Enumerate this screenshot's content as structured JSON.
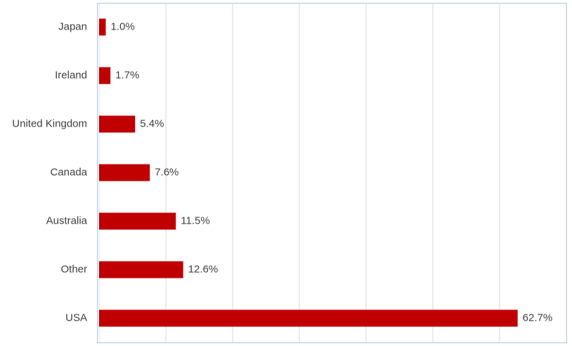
{
  "chart_data": {
    "type": "bar",
    "orientation": "horizontal",
    "categories": [
      "Japan",
      "Ireland",
      "United Kingdom",
      "Canada",
      "Australia",
      "Other",
      "USA"
    ],
    "values": [
      1.0,
      1.7,
      5.4,
      7.6,
      11.5,
      12.6,
      62.7
    ],
    "value_labels": [
      "1.0%",
      "1.7%",
      "5.4%",
      "7.6%",
      "11.5%",
      "12.6%",
      "62.7%"
    ],
    "color": "#c00000",
    "xlim": [
      0,
      70
    ],
    "xticks": [
      0,
      10,
      20,
      30,
      40,
      50,
      60,
      70
    ],
    "grid": true
  }
}
